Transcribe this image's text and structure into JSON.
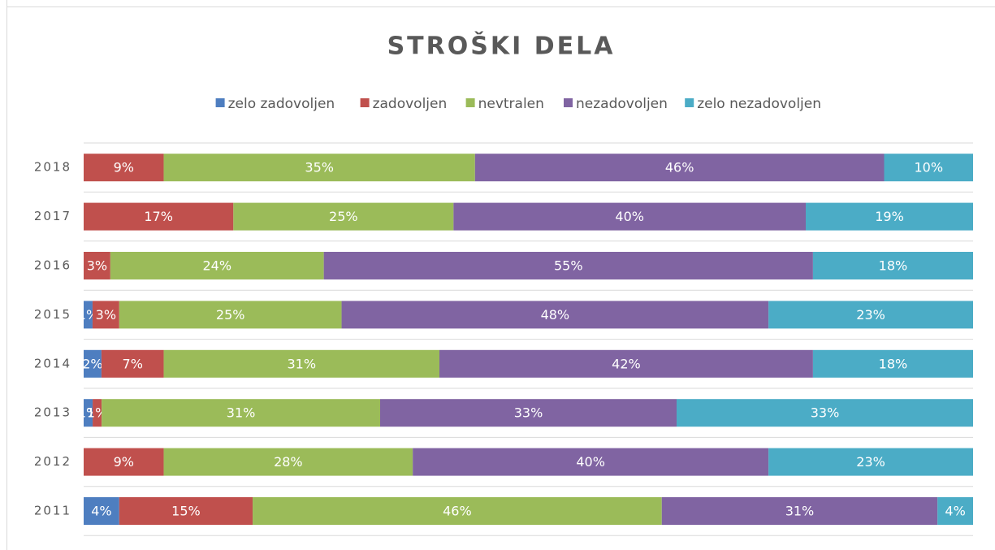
{
  "chart_data": {
    "type": "bar",
    "orientation": "horizontal",
    "stacking": "percent",
    "title": "STROŠKI DELA",
    "categories": [
      "2011",
      "2012",
      "2013",
      "2014",
      "2015",
      "2016",
      "2017",
      "2018"
    ],
    "series": [
      {
        "name": "zelo zadovoljen",
        "color": "#4e7ec0",
        "values": [
          4,
          0,
          1,
          2,
          1,
          0,
          0,
          0
        ],
        "value_labels": [
          "4%",
          null,
          "1%",
          "2%",
          "1%",
          null,
          null,
          null
        ]
      },
      {
        "name": "zadovoljen",
        "color": "#c0504d",
        "values": [
          15,
          9,
          1,
          7,
          3,
          3,
          17,
          9
        ],
        "value_labels": [
          "15%",
          "9%",
          "1%",
          "7%",
          "3%",
          "3%",
          "17%",
          "9%"
        ]
      },
      {
        "name": "nevtralen",
        "color": "#9bbb59",
        "values": [
          46,
          28,
          31,
          31,
          25,
          24,
          25,
          35
        ],
        "value_labels": [
          "46%",
          "28%",
          "31%",
          "31%",
          "25%",
          "24%",
          "25%",
          "35%"
        ]
      },
      {
        "name": "nezadovoljen",
        "color": "#8064a2",
        "values": [
          31,
          40,
          33,
          42,
          48,
          55,
          40,
          46
        ],
        "value_labels": [
          "31%",
          "40%",
          "33%",
          "42%",
          "48%",
          "55%",
          "40%",
          "46%"
        ]
      },
      {
        "name": "zelo nezadovoljen",
        "color": "#4bacc6",
        "values": [
          4,
          23,
          33,
          18,
          23,
          18,
          19,
          10
        ],
        "value_labels": [
          "4%",
          "23%",
          "33%",
          "18%",
          "23%",
          "18%",
          "19%",
          "10%"
        ]
      }
    ],
    "legend": "top",
    "grid": true
  }
}
